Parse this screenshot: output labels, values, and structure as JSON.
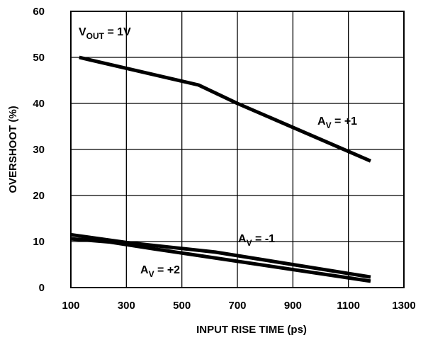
{
  "chart_data": {
    "type": "line",
    "xlabel": "INPUT RISE TIME (ps)",
    "ylabel": "OVERSHOOT (%)",
    "xlim": [
      100,
      1300
    ],
    "ylim": [
      0,
      60
    ],
    "xticks": [
      100,
      300,
      500,
      700,
      900,
      1100,
      1300
    ],
    "yticks": [
      0,
      10,
      20,
      30,
      40,
      50,
      60
    ],
    "grid": true,
    "legend": "none",
    "line_color": "#000000",
    "annotations": [
      {
        "main": "V",
        "sub": "OUT",
        "rest": " = 1V"
      },
      {
        "main": "A",
        "sub": "V",
        "rest": " = +1"
      },
      {
        "main": "A",
        "sub": "V",
        "rest": " = -1"
      },
      {
        "main": "A",
        "sub": "V",
        "rest": " = +2"
      }
    ],
    "series": [
      {
        "label_ref": 1,
        "x": [
          130,
          560,
          700,
          1180
        ],
        "y": [
          50,
          44,
          40,
          27.5
        ]
      },
      {
        "label_ref": 2,
        "x": [
          100,
          300,
          620,
          1180
        ],
        "y": [
          11.5,
          9.8,
          7.7,
          2.3
        ]
      },
      {
        "label_ref": 3,
        "x": [
          100,
          240,
          400,
          1180
        ],
        "y": [
          10.6,
          9.9,
          8.4,
          1.4
        ]
      }
    ]
  }
}
